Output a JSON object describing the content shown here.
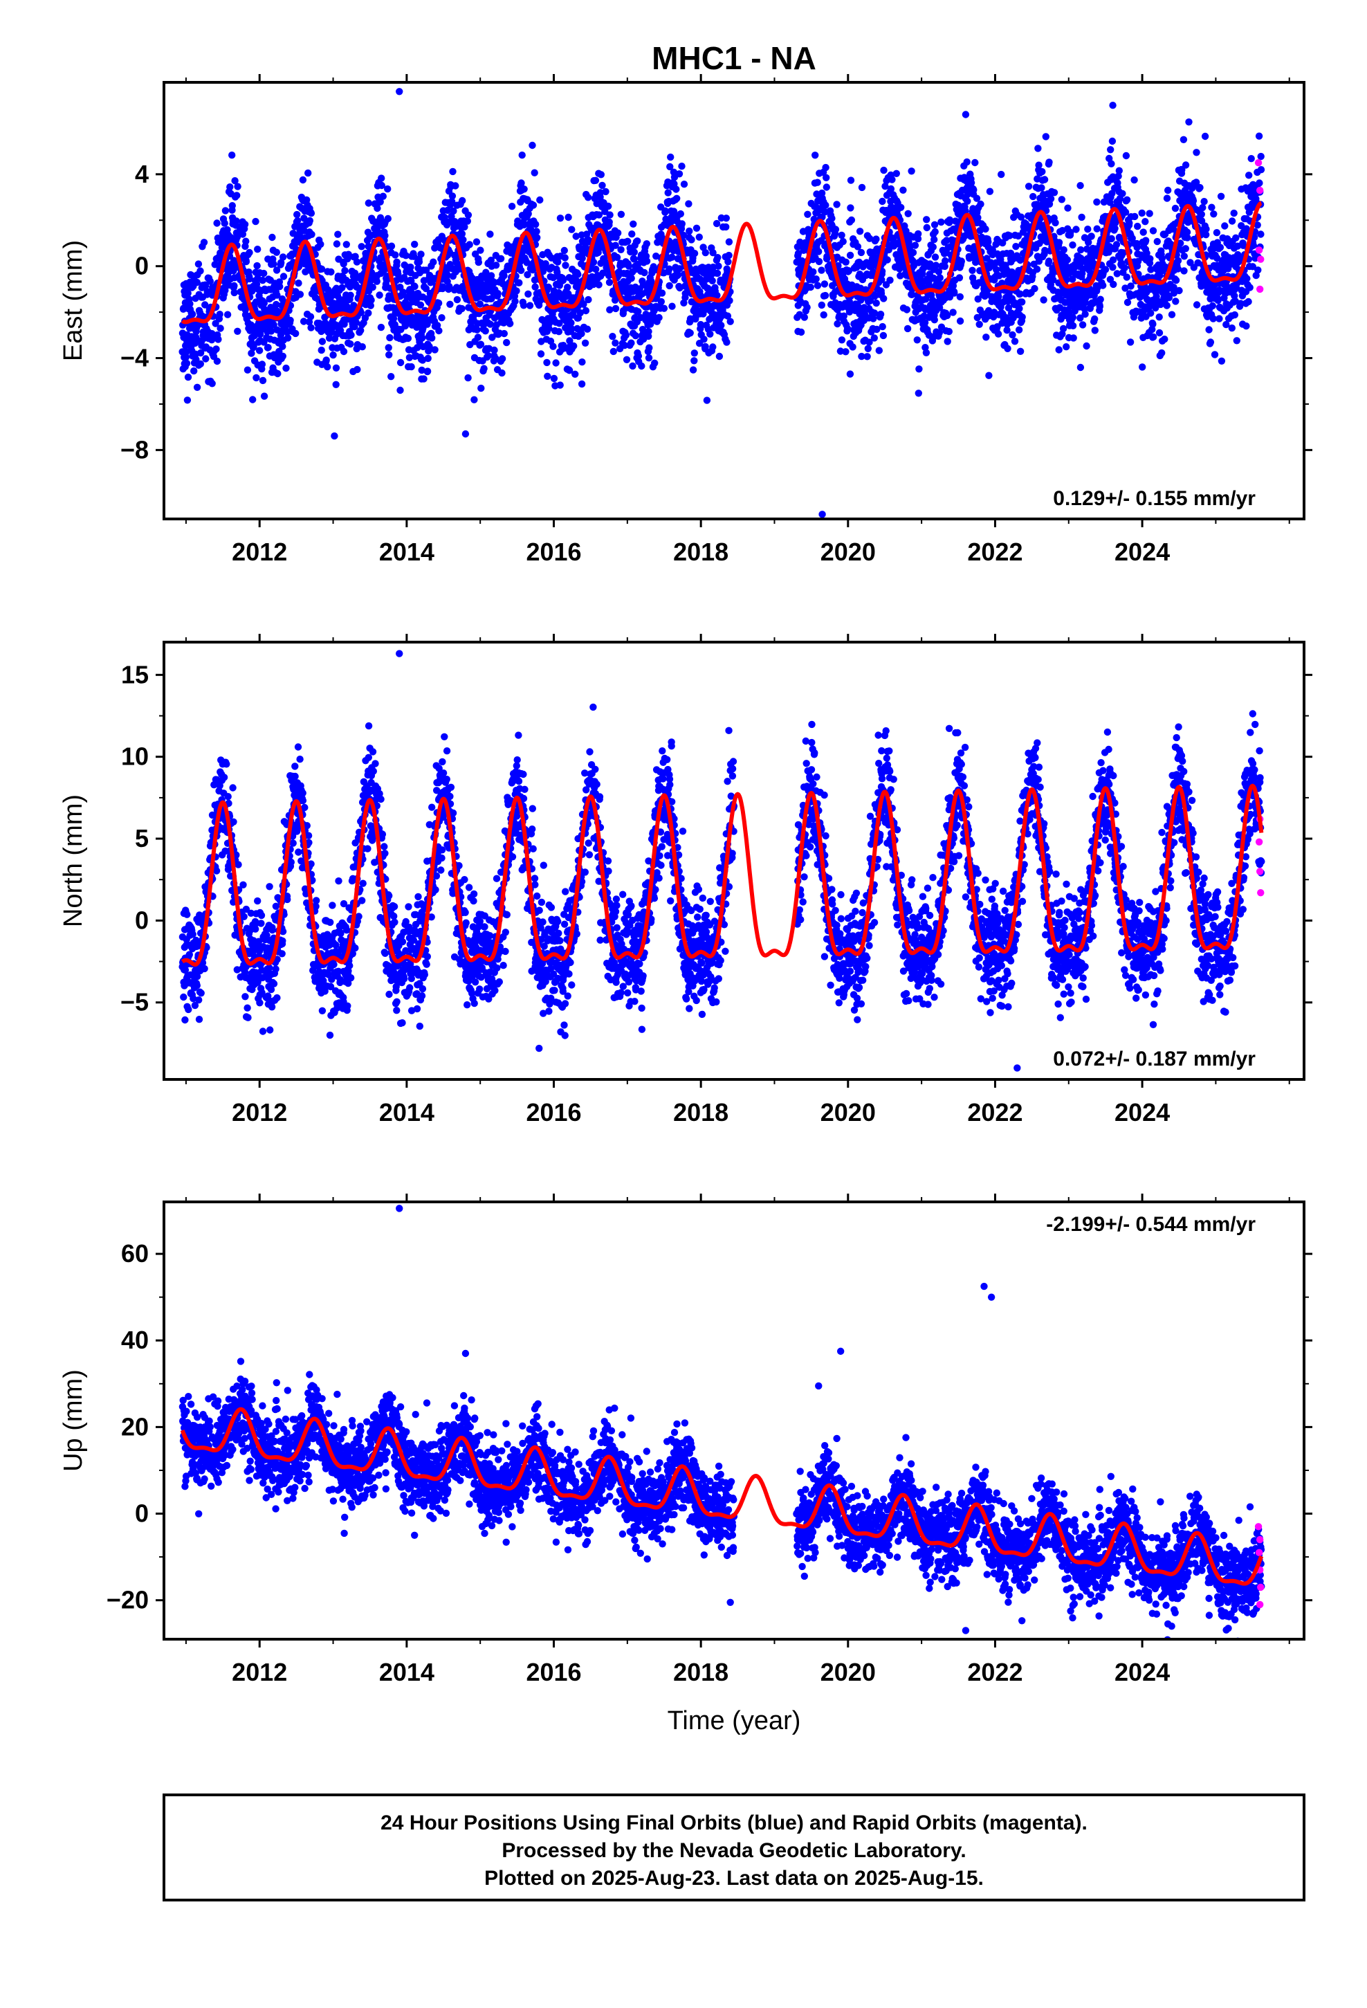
{
  "title": "MHC1 - NA",
  "footer": {
    "lines": [
      "24 Hour Positions Using Final Orbits (blue) and Rapid Orbits (magenta).",
      "Processed by the Nevada Geodetic Laboratory.",
      "Plotted on 2025-Aug-23. Last data on 2025-Aug-15."
    ]
  },
  "colors": {
    "final_orbits": "#0000ff",
    "rapid_orbits": "#ff00ff",
    "model_fit": "#ff0000",
    "frame": "#000000"
  },
  "chart_data": [
    {
      "type": "scatter",
      "component": "east",
      "ylabel": "East (mm)",
      "xlabel": "",
      "xlim": [
        2010.7,
        2026.2
      ],
      "ylim": [
        -11,
        8
      ],
      "yticks": [
        4,
        0,
        -4,
        -8
      ],
      "ytick_labels": [
        "4",
        "0",
        "−4",
        "−8"
      ],
      "xticks": [
        2012,
        2014,
        2016,
        2018,
        2020,
        2022,
        2024
      ],
      "rate": "0.129+/- 0.155 mm/yr",
      "rate_position": "bottom-right",
      "model": {
        "offset": -1.3,
        "trend": 0.129,
        "t0": 2011.0,
        "breakpoint": 2019.3,
        "offset_after": 0.0,
        "amp": 1.6,
        "phase_peak": 0.62
      },
      "scatter_noise": 1.3,
      "data_start": 2010.95,
      "data_end": 2025.62,
      "gap": [
        2018.4,
        2019.3
      ],
      "outliers": [
        [
          2013.9,
          7.6
        ],
        [
          2014.8,
          -7.3
        ],
        [
          2019.65,
          -10.8
        ],
        [
          2023.6,
          7.0
        ],
        [
          2021.6,
          6.6
        ]
      ],
      "rapid_points": [
        [
          2025.58,
          4.5
        ],
        [
          2025.6,
          3.3
        ],
        [
          2025.59,
          0.7
        ],
        [
          2025.61,
          0.3
        ],
        [
          2025.6,
          -1.0
        ]
      ]
    },
    {
      "type": "scatter",
      "component": "north",
      "ylabel": "North (mm)",
      "xlabel": "",
      "xlim": [
        2010.7,
        2026.2
      ],
      "ylim": [
        -9.7,
        17
      ],
      "yticks": [
        15,
        10,
        5,
        0,
        -5
      ],
      "ytick_labels": [
        "15",
        "10",
        "5",
        "0",
        "−5"
      ],
      "xticks": [
        2012,
        2014,
        2016,
        2018,
        2020,
        2022,
        2024
      ],
      "rate": "0.072+/- 0.187 mm/yr",
      "rate_position": "bottom-right",
      "model": {
        "offset": 0.7,
        "trend": 0.072,
        "t0": 2011.0,
        "breakpoint": 2099,
        "offset_after": 0,
        "amp": 4.8,
        "phase_peak": 0.5
      },
      "scatter_noise": 1.6,
      "data_start": 2010.95,
      "data_end": 2025.62,
      "gap": [
        2018.45,
        2019.3
      ],
      "outliers": [
        [
          2013.9,
          16.3
        ],
        [
          2018.38,
          11.6
        ],
        [
          2017.6,
          10.9
        ],
        [
          2020.5,
          11.3
        ],
        [
          2015.8,
          -7.8
        ],
        [
          2022.3,
          -9.0
        ]
      ],
      "rapid_points": [
        [
          2025.6,
          6.2
        ],
        [
          2025.59,
          4.8
        ],
        [
          2025.6,
          3.0
        ],
        [
          2025.61,
          1.7
        ]
      ]
    },
    {
      "type": "scatter",
      "component": "up",
      "ylabel": "Up (mm)",
      "xlabel": "Time (year)",
      "xlim": [
        2010.7,
        2026.2
      ],
      "ylim": [
        -29,
        72
      ],
      "yticks": [
        60,
        40,
        20,
        0,
        -20
      ],
      "ytick_labels": [
        "60",
        "40",
        "20",
        "0",
        "−20"
      ],
      "xticks": [
        2012,
        2014,
        2016,
        2018,
        2020,
        2022,
        2024
      ],
      "rate": "-2.199+/- 0.544 mm/yr",
      "rate_position": "top-right",
      "model": {
        "offset": 19.0,
        "trend": -2.199,
        "t0": 2011.0,
        "breakpoint": 2099,
        "offset_after": 0,
        "amp": 5.0,
        "phase_peak": 0.75
      },
      "scatter_noise": 4.5,
      "data_start": 2010.95,
      "data_end": 2025.62,
      "gap": [
        2018.45,
        2019.3
      ],
      "outliers": [
        [
          2013.9,
          70.5
        ],
        [
          2021.85,
          52.5
        ],
        [
          2021.95,
          50.0
        ],
        [
          2014.8,
          37.0
        ],
        [
          2019.9,
          37.5
        ],
        [
          2019.6,
          29.5
        ],
        [
          2021.6,
          -27.0
        ],
        [
          2024.4,
          -26.0
        ],
        [
          2018.4,
          -20.5
        ]
      ],
      "rapid_points": [
        [
          2025.58,
          -3.0
        ],
        [
          2025.6,
          -6.0
        ],
        [
          2025.59,
          -9.0
        ],
        [
          2025.6,
          -13.0
        ],
        [
          2025.61,
          -17.0
        ],
        [
          2025.6,
          -21.0
        ]
      ]
    }
  ]
}
